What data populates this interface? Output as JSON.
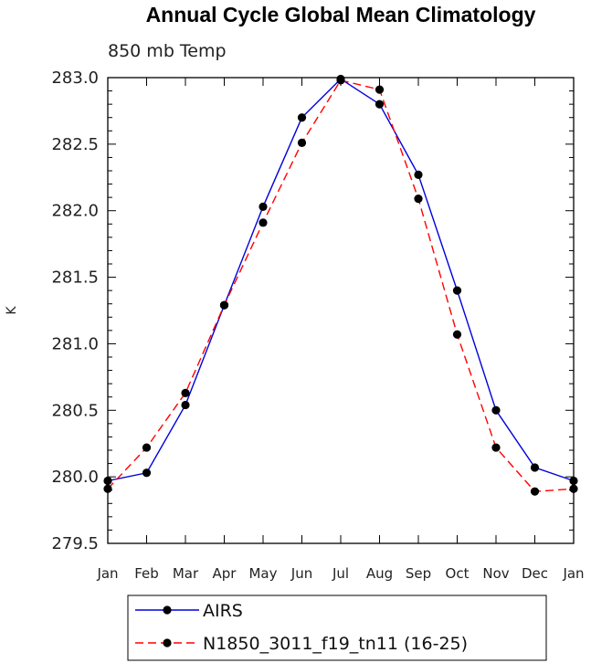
{
  "chart_data": {
    "type": "line",
    "title": "Annual Cycle Global Mean Climatology",
    "subtitle": "850 mb Temp",
    "xlabel": "",
    "ylabel": "K",
    "categories": [
      "Jan",
      "Feb",
      "Mar",
      "Apr",
      "May",
      "Jun",
      "Jul",
      "Aug",
      "Sep",
      "Oct",
      "Nov",
      "Dec",
      "Jan"
    ],
    "ylim": [
      279.5,
      283.0
    ],
    "yticks": [
      "279.5",
      "280.0",
      "280.5",
      "281.0",
      "281.5",
      "282.0",
      "282.5",
      "283.0"
    ],
    "grid": false,
    "legend_position": "bottom",
    "series": [
      {
        "name": "AIRS",
        "color": "#0000dd",
        "style": "solid",
        "values": [
          279.97,
          280.03,
          280.54,
          281.29,
          282.03,
          282.7,
          282.99,
          282.8,
          282.27,
          281.4,
          280.5,
          280.07,
          279.97
        ]
      },
      {
        "name": "N1850_3011_f19_tn11 (16-25)",
        "color": "#ff0000",
        "style": "dashed",
        "values": [
          279.91,
          280.22,
          280.63,
          281.29,
          281.91,
          282.51,
          282.98,
          282.91,
          282.09,
          281.07,
          280.22,
          279.89,
          279.91
        ]
      }
    ]
  }
}
